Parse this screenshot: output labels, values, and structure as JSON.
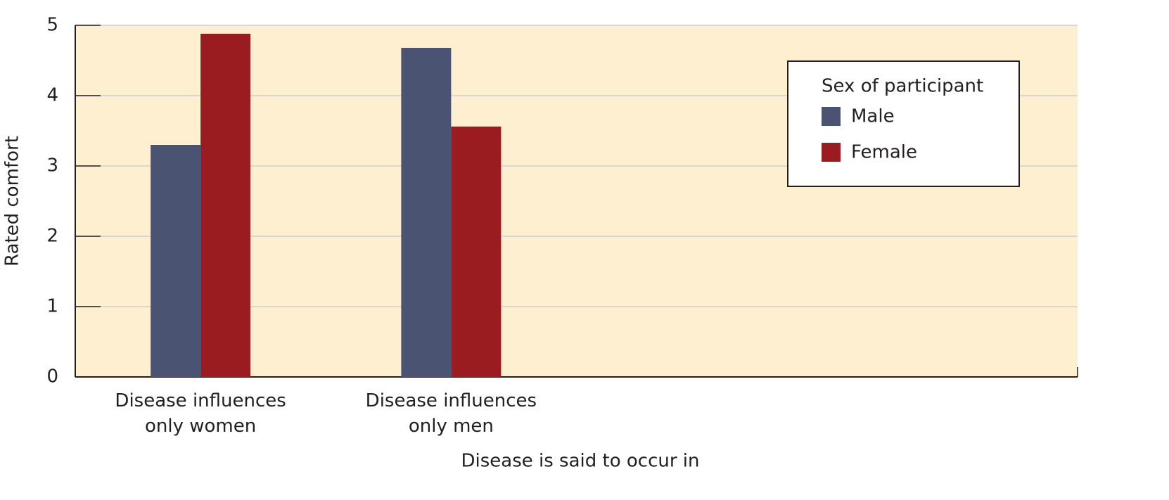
{
  "chart_data": {
    "type": "bar",
    "y_label": "Rated comfort",
    "x_label": "Disease is said to occur in",
    "categories": [
      "Disease influences\nonly women",
      "Disease influences\nonly men",
      null,
      null
    ],
    "series": [
      {
        "name": "Male",
        "color": "#4a5472",
        "values": [
          3.3,
          4.68,
          null,
          null
        ]
      },
      {
        "name": "Female",
        "color": "#9a1c20",
        "values": [
          4.88,
          3.56,
          null,
          null
        ]
      }
    ],
    "ylim": [
      0,
      5
    ],
    "yticks": [
      0,
      1,
      2,
      3,
      4,
      5
    ],
    "grid": true,
    "legend_title": "Sex of participant",
    "legend": "upper right",
    "background": "#fdefd0"
  }
}
